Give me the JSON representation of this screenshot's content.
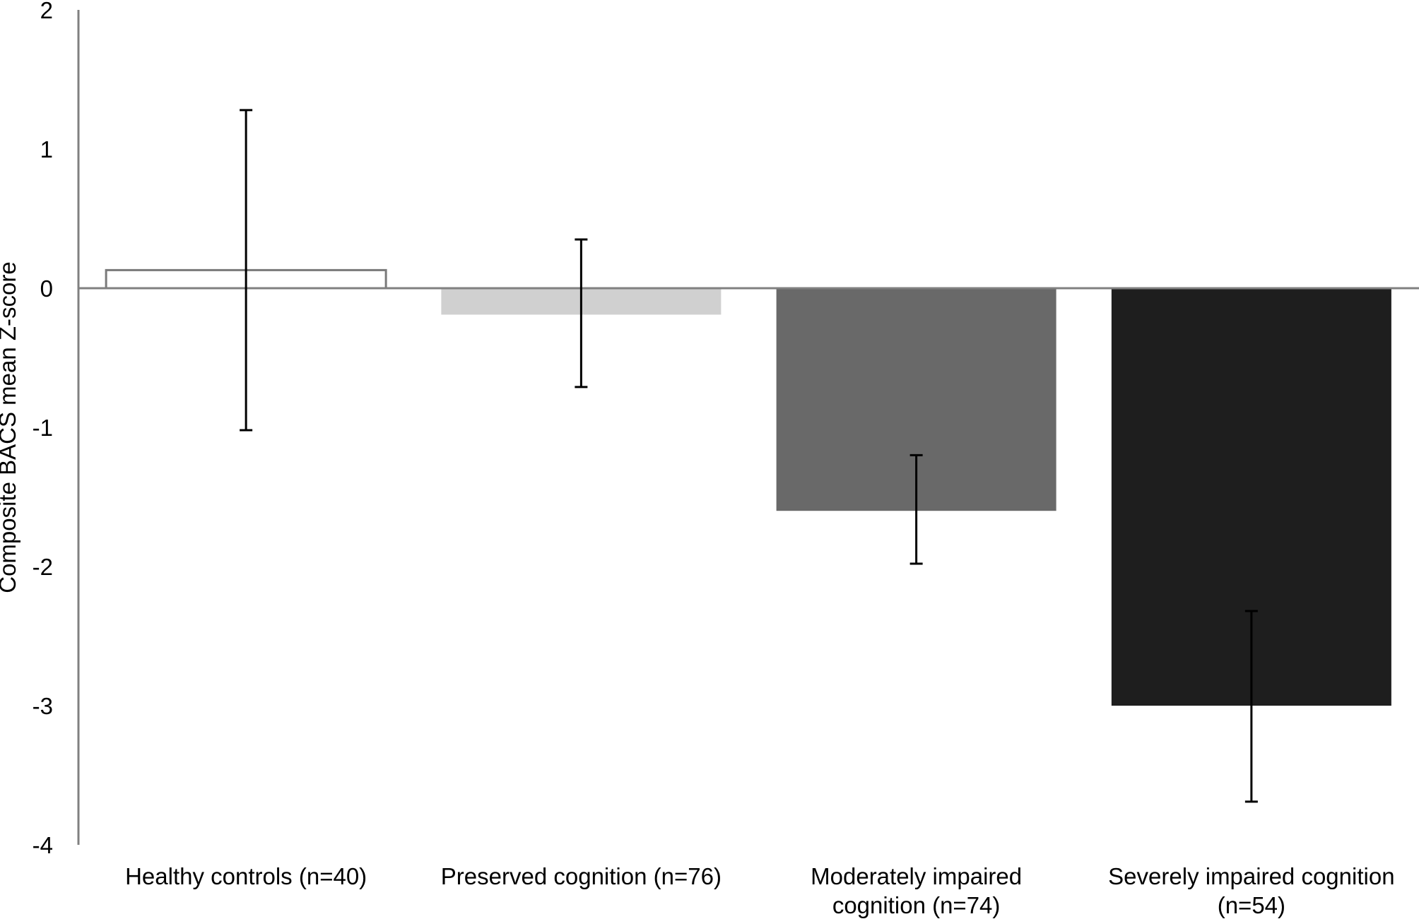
{
  "chart_data": {
    "type": "bar",
    "title": "",
    "xlabel": "",
    "ylabel": "Composite BACS mean Z-score",
    "ylim": [
      -4,
      2
    ],
    "yticks": [
      "2",
      "1",
      "0",
      "-1",
      "-2",
      "-3",
      "-4"
    ],
    "ytick_values": [
      2,
      1,
      0,
      -1,
      -2,
      -3,
      -4
    ],
    "grid": false,
    "legend": "none",
    "categories": [
      [
        "Healthy controls (n=40)"
      ],
      [
        "Preserved cognition (n=76)"
      ],
      [
        "Moderately impaired",
        "cognition (n=74)"
      ],
      [
        "Severely impaired cognition",
        "(n=54)"
      ]
    ],
    "values": [
      0.13,
      -0.19,
      -1.6,
      -3.0
    ],
    "error_upper": [
      1.28,
      0.35,
      -1.2,
      -2.32
    ],
    "error_lower": [
      -1.02,
      -0.71,
      -1.98,
      -3.69
    ],
    "bar_fills": [
      "#ffffff",
      "#d0d0d0",
      "#696969",
      "#1e1e1e"
    ],
    "bar_strokes": [
      "#7a7a7a",
      "none",
      "none",
      "none"
    ],
    "axis_color": "#808080",
    "errorbar_color": "#000000"
  }
}
